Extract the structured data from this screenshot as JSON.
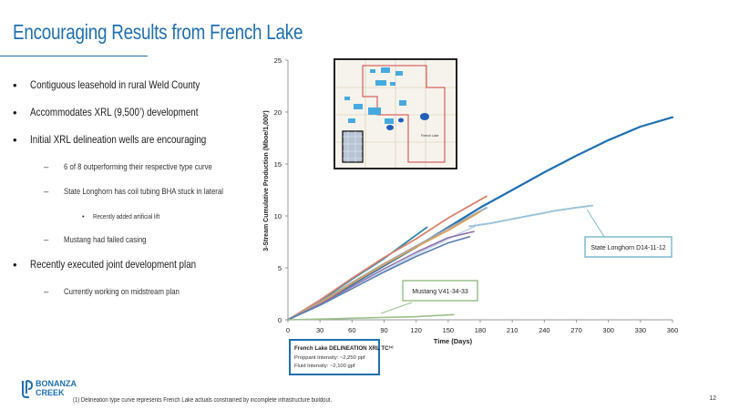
{
  "slide": {
    "title": "Encouraging Results from French Lake",
    "page_number": "12",
    "footnote": "(1) Delineation type curve represents French Lake actuals constrained by incomplete infrastructure buildout.",
    "logo": {
      "line1": "BONANZA",
      "line2": "CREEK"
    },
    "accent_color": "#1f6fb0"
  },
  "bullets": [
    {
      "level": 1,
      "text": "Contiguous leasehold in rural Weld County"
    },
    {
      "level": 1,
      "text": "Accommodates XRL (9,500’) development"
    },
    {
      "level": 1,
      "text": "Initial XRL delineation wells are encouraging"
    },
    {
      "level": 2,
      "text": "6 of 8 outperforming their respective type curve"
    },
    {
      "level": 2,
      "text": "State Longhorn has coil tubing BHA stuck in lateral"
    },
    {
      "level": 3,
      "text": "Recently added artificial lift"
    },
    {
      "level": 2,
      "text": "Mustang had failed casing"
    },
    {
      "level": 1,
      "text": "Recently executed joint development plan"
    },
    {
      "level": 2,
      "text": "Currently working on midstream plan"
    }
  ],
  "chart_data": {
    "type": "line",
    "xlabel": "Time (Days)",
    "ylabel": "3-Stream Cumulative Production (Mboe/1,000')",
    "xlim": [
      0,
      360
    ],
    "ylim": [
      0,
      25
    ],
    "xticks": [
      0,
      30,
      60,
      90,
      120,
      150,
      180,
      210,
      240,
      270,
      300,
      330,
      360
    ],
    "yticks": [
      0,
      5,
      10,
      15,
      20,
      25
    ],
    "grid": false,
    "series": [
      {
        "color": "#1f6fb0",
        "style": "solid",
        "width": 2.2,
        "points": [
          [
            0,
            0
          ],
          [
            30,
            1.6
          ],
          [
            60,
            3.4
          ],
          [
            90,
            5.2
          ],
          [
            120,
            7.0
          ],
          [
            150,
            8.9
          ],
          [
            180,
            10.8
          ],
          [
            210,
            12.5
          ],
          [
            240,
            14.2
          ],
          [
            270,
            15.8
          ],
          [
            300,
            17.3
          ],
          [
            330,
            18.6
          ],
          [
            360,
            19.5
          ]
        ]
      },
      {
        "name": "French Lake DELINEATION XRL TC",
        "color": "#c0d4ea",
        "style": "solid",
        "width": 1.6,
        "points": [
          [
            0,
            0
          ],
          [
            30,
            1.5
          ],
          [
            60,
            3.0
          ],
          [
            90,
            4.7
          ],
          [
            120,
            6.3
          ],
          [
            150,
            7.8
          ],
          [
            175,
            9.0
          ]
        ]
      },
      {
        "color": "#2a8aa8",
        "style": "solid",
        "width": 1.8,
        "points": [
          [
            0,
            0
          ],
          [
            30,
            1.8
          ],
          [
            60,
            3.9
          ],
          [
            90,
            5.9
          ],
          [
            110,
            7.4
          ],
          [
            130,
            8.9
          ]
        ]
      },
      {
        "color": "#d9826f",
        "style": "solid",
        "width": 1.8,
        "points": [
          [
            0,
            0
          ],
          [
            30,
            1.9
          ],
          [
            60,
            4.0
          ],
          [
            90,
            6.0
          ],
          [
            120,
            7.8
          ],
          [
            150,
            9.8
          ],
          [
            186,
            11.9
          ]
        ]
      },
      {
        "color": "#9aa7b5",
        "style": "solid",
        "width": 1.8,
        "points": [
          [
            0,
            0
          ],
          [
            30,
            1.7
          ],
          [
            60,
            3.6
          ],
          [
            90,
            5.4
          ],
          [
            120,
            7.1
          ],
          [
            150,
            8.8
          ],
          [
            186,
            10.8
          ]
        ]
      },
      {
        "color": "#e0a050",
        "style": "solid",
        "width": 1.6,
        "points": [
          [
            0,
            0
          ],
          [
            30,
            1.6
          ],
          [
            60,
            3.5
          ],
          [
            90,
            5.3
          ],
          [
            120,
            7.0
          ],
          [
            150,
            8.6
          ],
          [
            180,
            10.4
          ]
        ]
      },
      {
        "color": "#8e73a8",
        "style": "solid",
        "width": 1.6,
        "points": [
          [
            0,
            0
          ],
          [
            30,
            1.5
          ],
          [
            60,
            3.2
          ],
          [
            90,
            4.9
          ],
          [
            120,
            6.5
          ],
          [
            150,
            7.9
          ],
          [
            174,
            8.5
          ]
        ]
      },
      {
        "color": "#5b7fb0",
        "style": "solid",
        "width": 1.6,
        "points": [
          [
            0,
            0
          ],
          [
            30,
            1.4
          ],
          [
            60,
            3.0
          ],
          [
            90,
            4.6
          ],
          [
            120,
            6.1
          ],
          [
            150,
            7.4
          ],
          [
            170,
            8.0
          ]
        ]
      },
      {
        "name": "State Longhorn D14-11-12",
        "color": "#9ac4d8",
        "style": "dotted",
        "width": 2.0,
        "points": [
          [
            170,
            9.0
          ],
          [
            190,
            9.3
          ],
          [
            210,
            9.7
          ],
          [
            230,
            10.1
          ],
          [
            250,
            10.5
          ],
          [
            270,
            10.8
          ],
          [
            285,
            11.0
          ]
        ]
      },
      {
        "name": "Mustang V41-34-33",
        "color": "#9cc08a",
        "style": "solid",
        "width": 1.6,
        "points": [
          [
            0,
            0
          ],
          [
            40,
            0.1
          ],
          [
            80,
            0.2
          ],
          [
            120,
            0.3
          ],
          [
            155,
            0.5
          ]
        ]
      }
    ],
    "callouts": [
      {
        "text": "State Longhorn D14-11-12",
        "border": "#7fbad0"
      },
      {
        "text": "Mustang V41-34-33",
        "border": "#9cc08a"
      }
    ],
    "legend_box": {
      "title": "French Lake DELINEATION XRL TC⁽¹⁾",
      "line1": "Proppant Intensity: ~2,250 ppf",
      "line2": "Fluid Intensity: ~2,100 gpf",
      "border": "#1f6fb0"
    }
  },
  "map_inset": {
    "label": "French Lake"
  }
}
